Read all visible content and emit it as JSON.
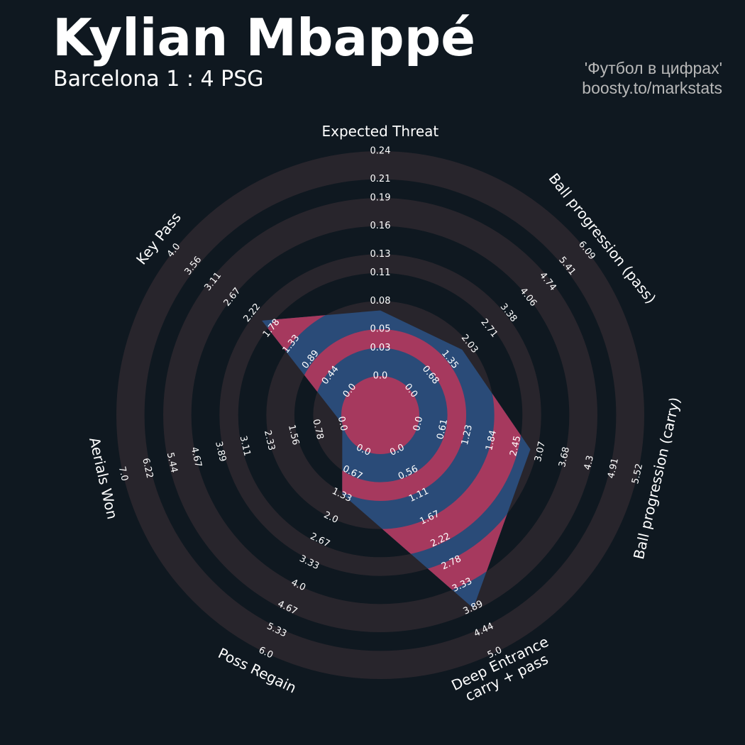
{
  "chart_data": {
    "type": "radar",
    "title": "Kylian Mbappé",
    "subtitle": "Barcelona 1 : 4 PSG",
    "credits": [
      "'Футбол в цифрах'",
      "boosty.to/markstats"
    ],
    "params": [
      "Expected Threat",
      "Ball progression (pass)",
      "Ball progression (carry)",
      "Deep Entrance\ncarry + pass",
      "Poss Regain",
      "Aerials Won",
      "Key Pass"
    ],
    "ranges": [
      [
        0,
        0.24
      ],
      [
        0,
        6.09
      ],
      [
        0,
        5.52
      ],
      [
        0,
        5
      ],
      [
        0,
        6
      ],
      [
        0,
        7
      ],
      [
        0,
        4
      ]
    ],
    "ticks": [
      [
        {
          "value": 0,
          "label": "0.0"
        },
        0.03,
        0.05,
        0.08,
        0.11,
        0.13,
        0.16,
        0.19,
        0.21,
        0.24
      ],
      [
        {
          "value": 0,
          "label": "0.0"
        },
        0.68,
        1.35,
        2.03,
        2.71,
        3.38,
        4.06,
        4.74,
        5.41,
        6.09
      ],
      [
        {
          "value": 0,
          "label": "0.0"
        },
        0.61,
        1.23,
        1.84,
        2.45,
        3.07,
        3.68,
        4.3,
        4.91,
        5.52
      ],
      [
        {
          "value": 0,
          "label": "0.0"
        },
        0.56,
        1.11,
        1.67,
        2.22,
        2.78,
        3.33,
        3.89,
        4.44,
        {
          "value": 5,
          "label": "5.0"
        }
      ],
      [
        {
          "value": 0,
          "label": "0.0"
        },
        0.67,
        1.33,
        {
          "value": 2,
          "label": "2.0"
        },
        2.67,
        3.33,
        {
          "value": 4,
          "label": "4.0"
        },
        4.67,
        5.33,
        {
          "value": 6,
          "label": "6.0"
        }
      ],
      [
        {
          "value": 0,
          "label": "0.0"
        },
        0.78,
        1.56,
        2.33,
        3.11,
        3.89,
        4.67,
        5.44,
        6.22,
        {
          "value": 7,
          "label": "7.0"
        }
      ],
      [
        {
          "value": 0,
          "label": "0.0"
        },
        0.44,
        0.89,
        1.33,
        1.78,
        2.22,
        2.67,
        3.11,
        3.56,
        {
          "value": 4,
          "label": "4.0"
        }
      ]
    ],
    "values": [
      0.07,
      1.78,
      2.82,
      3.9,
      1.3,
      0,
      2.0
    ],
    "color": "#2a4b78",
    "highlight_color": "#a6395e",
    "ring_color": "#28252c"
  }
}
